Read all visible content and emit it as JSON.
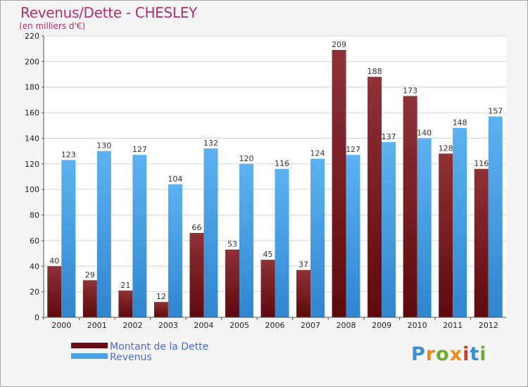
{
  "header": {
    "title": "Revenus/Dette - CHESLEY",
    "subtitle": "(en milliers d'€)"
  },
  "colors": {
    "title": "#b0306a",
    "dette": "#7a1f23",
    "revenus": "#4aa3e6",
    "legend_text": "#4a6bd6",
    "background": "#f4f4f4",
    "plot_background": "#ffffff",
    "grid": "#d4d4d4"
  },
  "legend": {
    "items": [
      {
        "label": "Montant de la Dette",
        "color": "#6a0b0f"
      },
      {
        "label": "Revenus",
        "color": "#4aa3e6"
      }
    ]
  },
  "logo": {
    "text": "Proxiti",
    "letter_colors": [
      "#3b8fd6",
      "#f08a1e",
      "#6cae34",
      "#f08a1e",
      "#d83a2a",
      "#3b8fd6",
      "#6cae34"
    ]
  },
  "chart_data": {
    "type": "bar",
    "title": "Revenus/Dette - CHESLEY",
    "subtitle": "(en milliers d'€)",
    "categories": [
      "2000",
      "2001",
      "2002",
      "2003",
      "2004",
      "2005",
      "2006",
      "2007",
      "2008",
      "2009",
      "2010",
      "2011",
      "2012"
    ],
    "series": [
      {
        "name": "Montant de la Dette",
        "values": [
          40,
          29,
          21,
          12,
          66,
          53,
          45,
          37,
          209,
          188,
          173,
          128,
          116
        ]
      },
      {
        "name": "Revenus",
        "values": [
          123,
          130,
          127,
          104,
          132,
          120,
          116,
          124,
          127,
          137,
          140,
          148,
          157
        ]
      }
    ],
    "ylim": [
      0,
      220
    ],
    "yticks": [
      0,
      20,
      40,
      60,
      80,
      100,
      120,
      140,
      160,
      180,
      200,
      220
    ],
    "grid": true,
    "legend_position": "bottom-left"
  }
}
